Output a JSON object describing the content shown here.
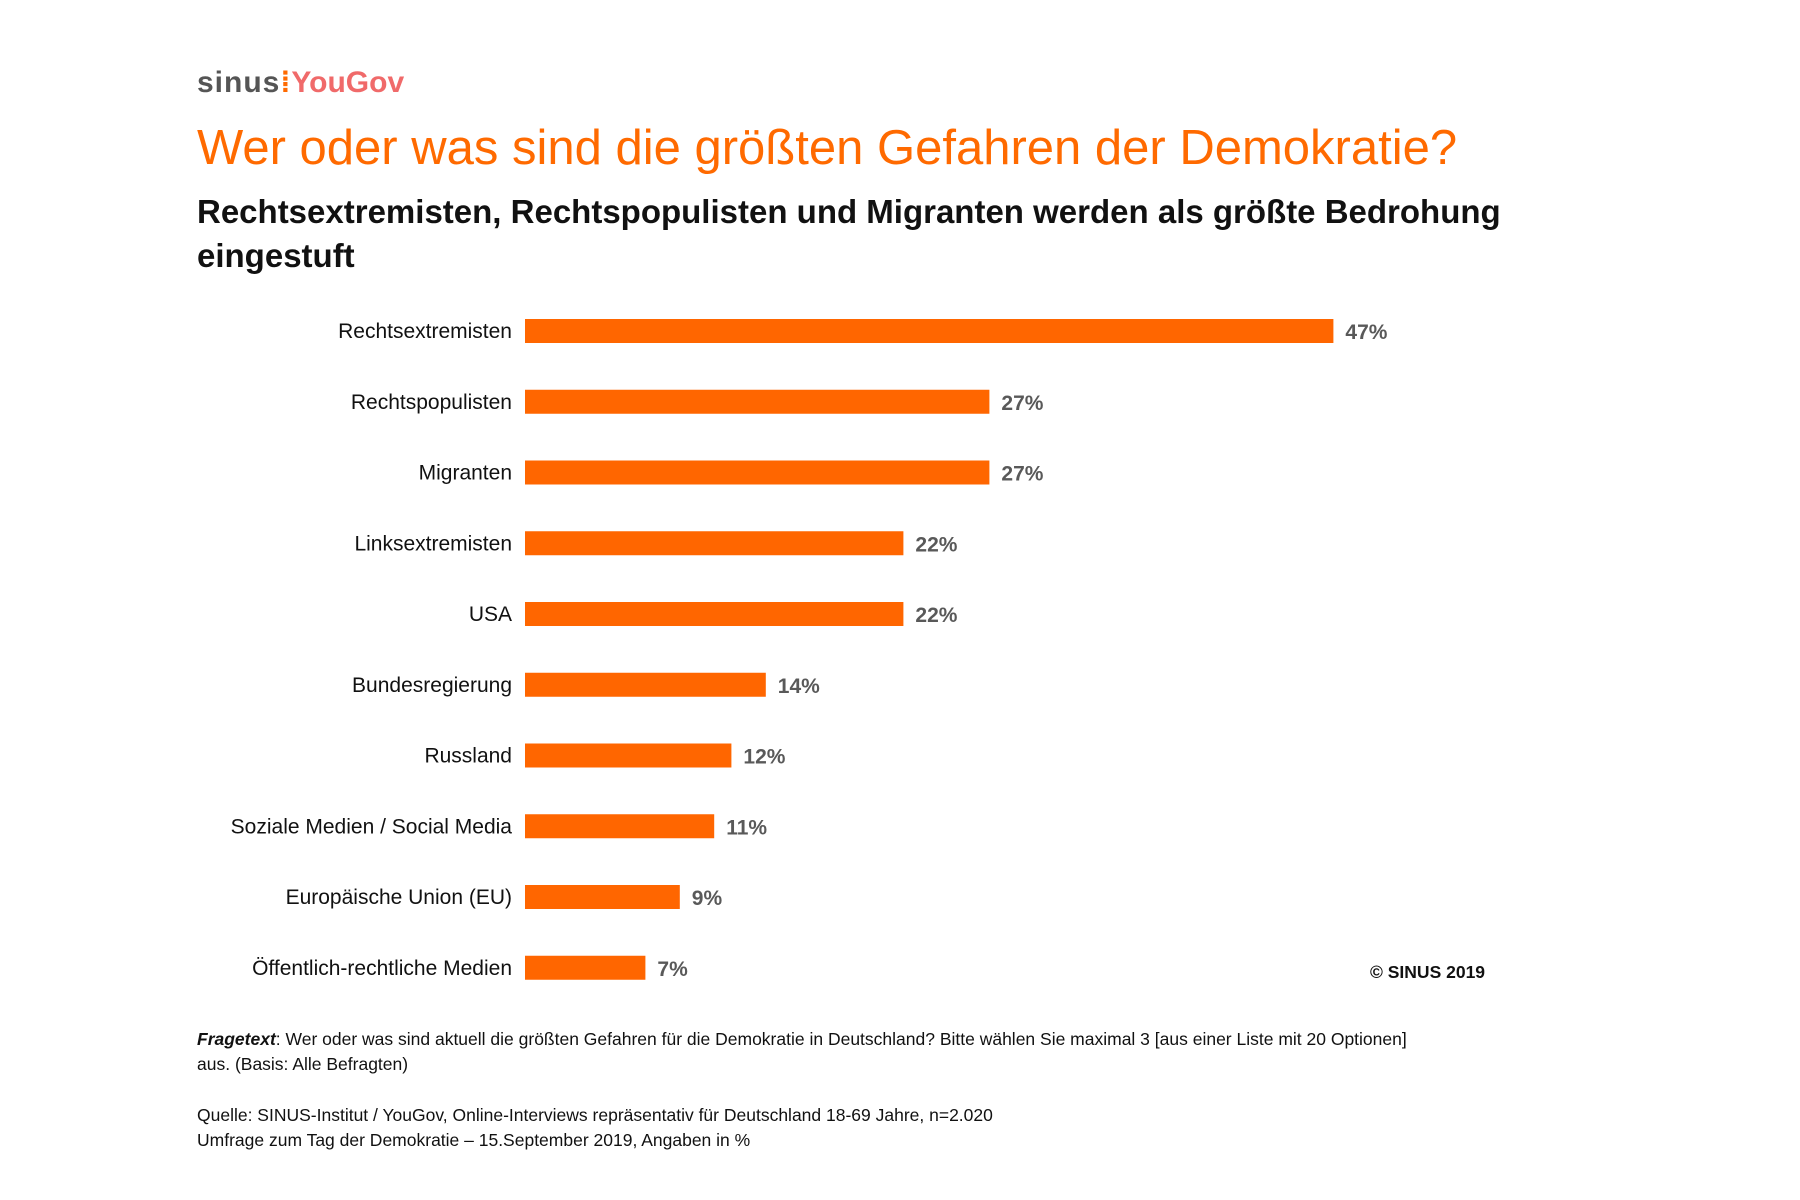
{
  "logo": {
    "sinus": "sinus",
    "yougov": "YouGov"
  },
  "title": "Wer oder was sind die größten Gefahren der Demokratie?",
  "subtitle": "Rechtsextremisten, Rechtspopulisten und Migranten werden als größte Bedrohung eingestuft",
  "copyright": "© SINUS 2019",
  "footnote": {
    "label": "Fragetext",
    "text": ": Wer oder was sind aktuell die größten Gefahren für die Demokratie in Deutschland? Bitte wählen Sie maximal 3 [aus einer Liste mit 20 Optionen] aus. (Basis: Alle Befragten)"
  },
  "source": {
    "line1": "Quelle: SINUS-Institut / YouGov, Online-Interviews repräsentativ für Deutschland 18-69 Jahre, n=2.020",
    "line2": "Umfrage zum Tag der Demokratie – 15.September 2019, Angaben in %"
  },
  "chart_data": {
    "type": "bar",
    "orientation": "horizontal",
    "categories": [
      "Rechtsextremisten",
      "Rechtspopulisten",
      "Migranten",
      "Linksextremisten",
      "USA",
      "Bundesregierung",
      "Russland",
      "Soziale Medien / Social Media",
      "Europäische Union (EU)",
      "Öffentlich-rechtliche Medien"
    ],
    "values": [
      47,
      27,
      27,
      22,
      22,
      14,
      12,
      11,
      9,
      7
    ],
    "data_labels": [
      "47%",
      "27%",
      "27%",
      "22%",
      "22%",
      "14%",
      "12%",
      "11%",
      "9%",
      "7%"
    ],
    "bar_color": "#ff6600",
    "grid": false,
    "xlim": [
      0,
      50
    ]
  }
}
